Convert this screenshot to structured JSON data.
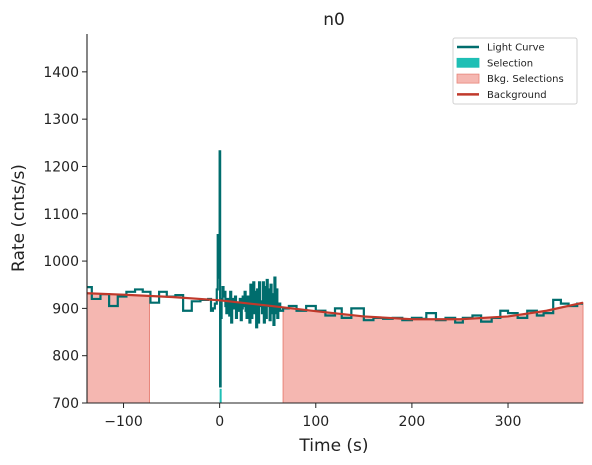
{
  "chart_data": {
    "type": "line",
    "title": "n0",
    "xlabel": "Time (s)",
    "ylabel": "Rate (cnts/s)",
    "xlim": [
      -138,
      378
    ],
    "ylim": [
      700,
      1480
    ],
    "x_ticks": [
      -100,
      0,
      100,
      200,
      300
    ],
    "x_tick_labels": [
      "−100",
      "0",
      "100",
      "200",
      "300"
    ],
    "y_ticks": [
      700,
      800,
      900,
      1000,
      1100,
      1200,
      1300,
      1400
    ],
    "y_tick_labels": [
      "700",
      "800",
      "900",
      "1000",
      "1100",
      "1200",
      "1300",
      "1400"
    ],
    "grid": false,
    "legend_position": "top-right",
    "legend": [
      {
        "label": "Light Curve",
        "kind": "line",
        "color": "#006d6d"
      },
      {
        "label": "Selection",
        "kind": "patch",
        "color": "#1fbfb5"
      },
      {
        "label": "Bkg. Selections",
        "kind": "patch",
        "color": "#f5b7b1"
      },
      {
        "label": "Background",
        "kind": "line",
        "color": "#c0392b"
      }
    ],
    "colors": {
      "light_curve": "#006d6d",
      "selection": "#1fbfb5",
      "bkg_selection": "#f5b7b1",
      "bkg_selection_edge": "#e8857a",
      "background": "#c0392b"
    },
    "bkg_selections": [
      [
        -138,
        -73
      ],
      [
        66,
        378
      ]
    ],
    "selection": [
      0,
      1
    ],
    "light_curve": {
      "x": [
        -138,
        -133,
        -124,
        -115,
        -106,
        -97,
        -88,
        -80,
        -72,
        -63,
        -55,
        -46,
        -38,
        -29,
        -20,
        -12,
        -9,
        -7,
        -5,
        -3,
        -2,
        -1,
        0,
        0.5,
        1,
        2,
        3,
        4,
        5,
        6,
        7,
        8,
        9,
        10,
        11,
        12,
        13,
        14,
        15,
        16,
        17,
        18,
        19,
        20,
        21,
        22,
        23,
        24,
        25,
        26,
        27,
        28,
        29,
        30,
        31,
        32,
        33,
        34,
        35,
        36,
        37,
        38,
        39,
        40,
        41,
        42,
        43,
        44,
        45,
        46,
        47,
        48,
        49,
        50,
        51,
        52,
        53,
        54,
        55,
        56,
        57,
        58,
        59,
        60,
        61,
        63,
        66,
        72,
        80,
        90,
        100,
        110,
        120,
        127,
        137,
        150,
        160,
        170,
        180,
        190,
        200,
        210,
        215,
        225,
        235,
        245,
        253,
        263,
        272,
        283,
        292,
        300,
        310,
        320,
        330,
        337,
        347,
        355,
        363,
        372,
        378
      ],
      "y": [
        945,
        920,
        930,
        905,
        925,
        935,
        940,
        935,
        912,
        935,
        925,
        928,
        895,
        915,
        918,
        920,
        895,
        900,
        910,
        940,
        1055,
        965,
        1232,
        735,
        880,
        920,
        945,
        925,
        935,
        905,
        890,
        920,
        900,
        885,
        935,
        870,
        920,
        912,
        900,
        925,
        880,
        905,
        910,
        895,
        920,
        875,
        900,
        925,
        905,
        935,
        895,
        880,
        925,
        915,
        870,
        950,
        880,
        905,
        955,
        890,
        935,
        860,
        940,
        870,
        955,
        905,
        915,
        890,
        955,
        870,
        945,
        880,
        960,
        905,
        940,
        875,
        950,
        890,
        930,
        865,
        965,
        890,
        940,
        880,
        910,
        895,
        900,
        905,
        895,
        905,
        895,
        885,
        900,
        880,
        900,
        875,
        880,
        878,
        880,
        875,
        880,
        878,
        890,
        875,
        880,
        870,
        880,
        885,
        872,
        880,
        895,
        890,
        880,
        895,
        885,
        890,
        918,
        910,
        905,
        910,
        910
      ]
    },
    "background": {
      "x": [
        -138,
        -100,
        -50,
        0,
        50,
        100,
        150,
        200,
        250,
        300,
        340,
        378
      ],
      "y": [
        932,
        929,
        924,
        917,
        906,
        894,
        883,
        877,
        877,
        883,
        895,
        912
      ]
    }
  }
}
